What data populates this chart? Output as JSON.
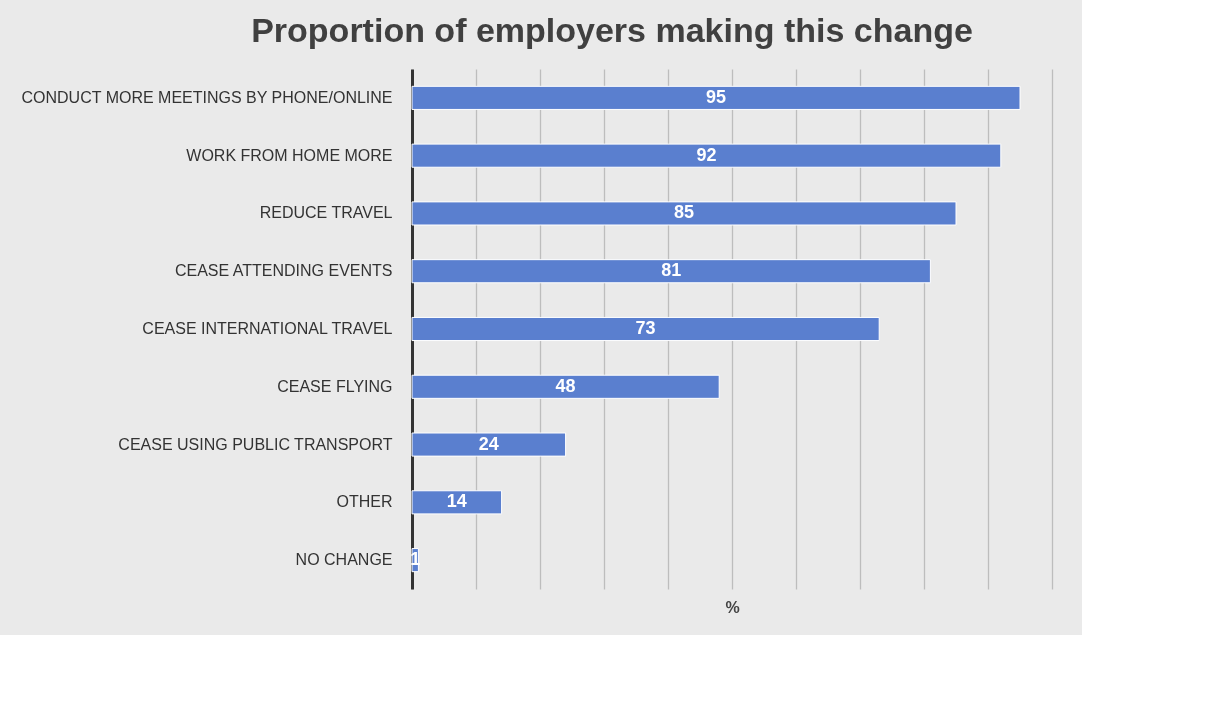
{
  "chart_data": {
    "type": "bar",
    "orientation": "horizontal",
    "title": "Proportion of employers making this change",
    "xlabel": "%",
    "categories": [
      "CONDUCT MORE MEETINGS BY PHONE/ONLINE",
      "WORK FROM HOME MORE",
      "REDUCE TRAVEL",
      "CEASE ATTENDING EVENTS",
      "CEASE INTERNATIONAL TRAVEL",
      "CEASE FLYING",
      "CEASE USING PUBLIC TRANSPORT",
      "OTHER",
      "NO CHANGE"
    ],
    "values": [
      95,
      92,
      85,
      81,
      73,
      48,
      24,
      14,
      1
    ],
    "color": "#5a7fcf",
    "data_labels": true,
    "xlim": [
      0,
      100
    ],
    "xticks": [
      {
        "value": 0,
        "label": null
      },
      {
        "value": 10,
        "label": null
      },
      {
        "value": 20,
        "label": null
      },
      {
        "value": 30,
        "label": null
      },
      {
        "value": 40,
        "label": null
      },
      {
        "value": 50,
        "label": null
      },
      {
        "value": 60,
        "label": null
      },
      {
        "value": 70,
        "label": null
      },
      {
        "value": 80,
        "label": null
      },
      {
        "value": 90,
        "label": null
      },
      {
        "value": 100,
        "label": null
      }
    ],
    "grid": "x",
    "tick_labels": "y"
  }
}
